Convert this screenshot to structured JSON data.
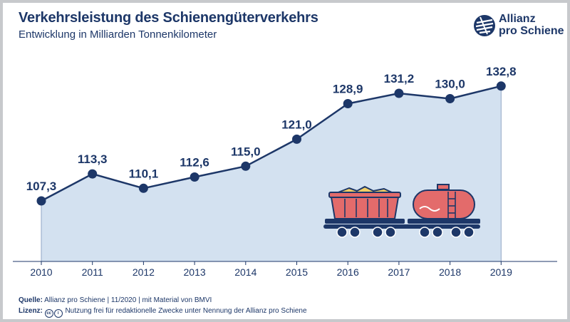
{
  "header": {
    "title": "Verkehrsleistung des Schienengüterverkehrs",
    "subtitle": "Entwicklung in Milliarden Tonnenkilometer"
  },
  "logo": {
    "line1": "Allianz",
    "line2": "pro Schiene",
    "icon": "allianz-pro-schiene-logo-icon"
  },
  "chart_data": {
    "type": "area",
    "categories": [
      "2010",
      "2011",
      "2012",
      "2013",
      "2014",
      "2015",
      "2016",
      "2017",
      "2018",
      "2019"
    ],
    "values": [
      107.3,
      113.3,
      110.1,
      112.6,
      115.0,
      121.0,
      128.9,
      131.2,
      130.0,
      132.8
    ],
    "value_labels": [
      "107,3",
      "113,3",
      "110,1",
      "112,6",
      "115,0",
      "121,0",
      "128,9",
      "131,2",
      "130,0",
      "132,8"
    ],
    "title": "Verkehrsleistung des Schienengüterverkehrs",
    "subtitle": "Entwicklung in Milliarden Tonnenkilometer",
    "xlabel": "",
    "ylabel": "",
    "ylim": [
      92,
      137
    ],
    "grid": false,
    "legend": "none",
    "colors": {
      "line": "#1d3768",
      "fill": "#d3e1f0",
      "text": "#1d3768"
    }
  },
  "illustration": {
    "icon": "freight-train-icon"
  },
  "footer": {
    "source_label": "Quelle:",
    "source_text": "Allianz pro Schiene | 11/2020 | mit Material von BMVI",
    "license_label": "Lizenz:",
    "license_text": "Nutzung frei für redaktionelle Zwecke unter Nennung der Allianz pro Schiene"
  }
}
